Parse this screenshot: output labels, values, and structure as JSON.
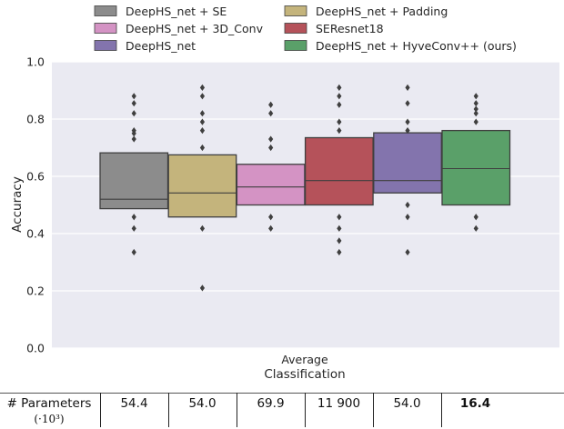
{
  "chart_data": {
    "type": "boxplot",
    "ylabel": "Accuracy",
    "xlabel_line1": "Average",
    "xlabel_line2": "Classification",
    "ylim": [
      0.0,
      1.0
    ],
    "yticks": [
      "0.0",
      "0.2",
      "0.4",
      "0.6",
      "0.8",
      "1.0"
    ],
    "ytick_values": [
      0.0,
      0.2,
      0.4,
      0.6,
      0.8,
      1.0
    ],
    "grid": true,
    "legend_placement": "top",
    "series": [
      {
        "name": "DeepHS_net + SE",
        "color": "#8c8c8c",
        "q1": 0.487,
        "median": 0.52,
        "q3": 0.682,
        "outliers": [
          0.88,
          0.855,
          0.82,
          0.76,
          0.75,
          0.73,
          0.458,
          0.418,
          0.335
        ]
      },
      {
        "name": "DeepHS_net + Padding",
        "color": "#c4b47c",
        "q1": 0.458,
        "median": 0.542,
        "q3": 0.675,
        "outliers": [
          0.91,
          0.88,
          0.82,
          0.79,
          0.76,
          0.7,
          0.418,
          0.21
        ]
      },
      {
        "name": "DeepHS_net + 3D_Conv",
        "color": "#d493c4",
        "q1": 0.5,
        "median": 0.563,
        "q3": 0.642,
        "outliers": [
          0.85,
          0.82,
          0.73,
          0.7,
          0.458,
          0.418
        ]
      },
      {
        "name": "SEResnet18",
        "color": "#b5525a",
        "q1": 0.5,
        "median": 0.585,
        "q3": 0.735,
        "outliers": [
          0.91,
          0.88,
          0.85,
          0.79,
          0.76,
          0.458,
          0.418,
          0.375,
          0.335
        ]
      },
      {
        "name": "DeepHS_net",
        "color": "#8374ad",
        "q1": 0.542,
        "median": 0.585,
        "q3": 0.752,
        "outliers": [
          0.91,
          0.855,
          0.79,
          0.76,
          0.5,
          0.458,
          0.335
        ]
      },
      {
        "name": "DeepHS_net + HyveConv++ (ours)",
        "color": "#5aa069",
        "q1": 0.5,
        "median": 0.627,
        "q3": 0.76,
        "outliers": [
          0.88,
          0.855,
          0.835,
          0.82,
          0.79,
          0.458,
          0.418
        ]
      }
    ]
  },
  "param_table": {
    "label": "# Parameters",
    "unit": "(·10³)",
    "values": [
      "54.4",
      "54.0",
      "69.9",
      "11 900",
      "54.0",
      "16.4"
    ],
    "bold_index": 5
  },
  "colors": {
    "plot_background": "#eaeaf2",
    "grid": "#ffffff",
    "box_edge": "#3f3f3f",
    "outlier": "#3f3f3f"
  }
}
